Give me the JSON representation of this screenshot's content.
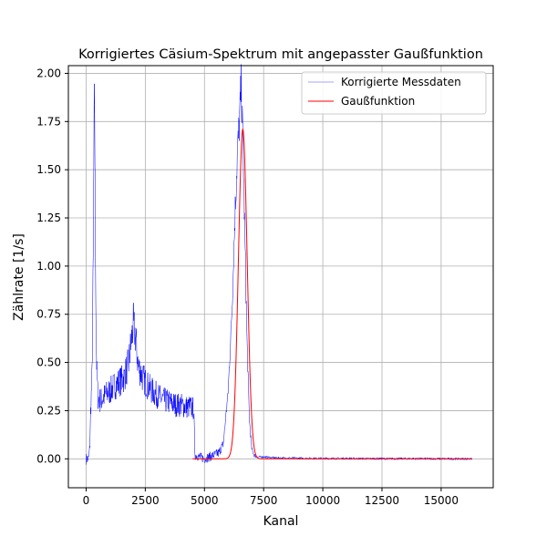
{
  "chart_data": {
    "type": "line",
    "title": "Korrigiertes Cäsium-Spektrum mit angepasster Gaußfunktion",
    "xlabel": "Kanal",
    "ylabel": "Zählrate [1/s]",
    "xlim": [
      -750,
      17200
    ],
    "ylim": [
      -0.15,
      2.04
    ],
    "xticks": [
      0,
      2500,
      5000,
      7500,
      10000,
      12500,
      15000
    ],
    "xtick_labels": [
      "0",
      "2500",
      "5000",
      "7500",
      "10000",
      "12500",
      "15000"
    ],
    "yticks": [
      0.0,
      0.25,
      0.5,
      0.75,
      1.0,
      1.25,
      1.5,
      1.75,
      2.0
    ],
    "ytick_labels": [
      "0.00",
      "0.25",
      "0.50",
      "0.75",
      "1.00",
      "1.25",
      "1.50",
      "1.75",
      "2.00"
    ],
    "grid": true,
    "legend_position": "top-right",
    "series": [
      {
        "name": "Korrigierte Messdaten",
        "color": "#0000ff",
        "x": [
          0,
          100,
          150,
          200,
          250,
          300,
          330,
          360,
          390,
          420,
          450,
          500,
          600,
          800,
          1000,
          1200,
          1400,
          1600,
          1800,
          1900,
          2000,
          2100,
          2200,
          2400,
          2600,
          2800,
          3000,
          3200,
          3400,
          3600,
          3800,
          4000,
          4200,
          4400,
          4550,
          4600,
          4800,
          5000,
          5200,
          5400,
          5600,
          5800,
          6000,
          6100,
          6200,
          6300,
          6400,
          6500,
          6550,
          6600,
          6650,
          6700,
          6800,
          6900,
          7000,
          7100,
          7200,
          7500,
          8000,
          9000,
          10000,
          11000,
          12000,
          13000,
          14000,
          15000,
          16000,
          16300
        ],
        "y": [
          0.0,
          0.0,
          0.05,
          0.28,
          0.42,
          1.0,
          1.6,
          1.85,
          1.2,
          0.7,
          0.45,
          0.32,
          0.3,
          0.33,
          0.35,
          0.38,
          0.4,
          0.42,
          0.5,
          0.6,
          0.7,
          0.62,
          0.48,
          0.42,
          0.38,
          0.35,
          0.33,
          0.31,
          0.3,
          0.29,
          0.28,
          0.28,
          0.27,
          0.27,
          0.26,
          0.02,
          0.01,
          0.0,
          0.01,
          0.02,
          0.03,
          0.08,
          0.35,
          0.6,
          0.9,
          1.3,
          1.6,
          1.8,
          1.93,
          1.75,
          1.5,
          1.2,
          0.6,
          0.2,
          0.05,
          0.02,
          0.01,
          0.01,
          0.005,
          0.003,
          0.002,
          0.002,
          0.001,
          0.001,
          0.001,
          0.0,
          0.0,
          0.0
        ]
      },
      {
        "name": "Gaußfunktion",
        "color": "#ff0000",
        "x_start": 4500,
        "x_end": 16300,
        "amplitude": 1.71,
        "center": 6620,
        "sigma": 185
      }
    ]
  }
}
